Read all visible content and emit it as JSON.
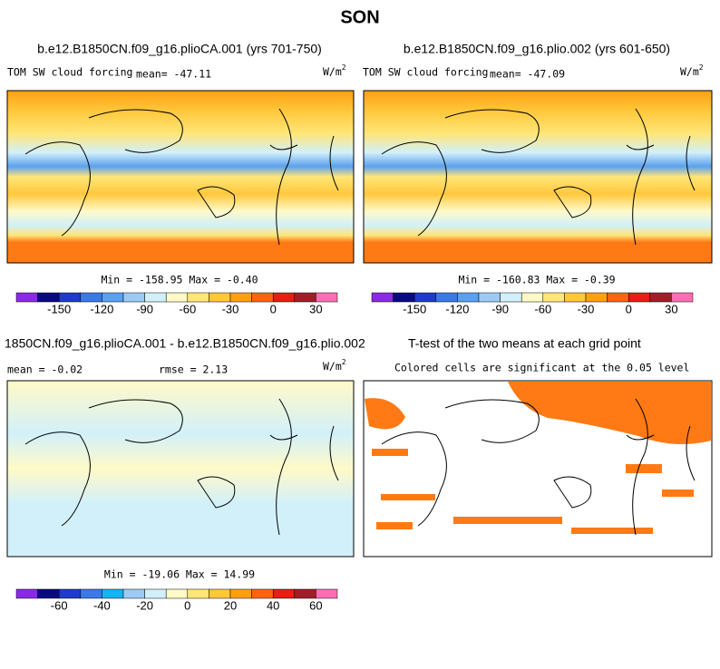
{
  "title": "SON",
  "panels": [
    {
      "title": "b.e12.B1850CN.f09_g16.plioCA.001 (yrs 701-750)",
      "variable": "TOM SW cloud forcing",
      "mean": "mean= -47.11",
      "units": "W/m",
      "units_power": "2",
      "stats": "Min = -158.95 Max =  -0.40"
    },
    {
      "title": "b.e12.B1850CN.f09_g16.plio.002 (yrs 601-650)",
      "variable": "TOM SW cloud forcing",
      "mean": "mean= -47.09",
      "units": "W/m",
      "units_power": "2",
      "stats": "Min = -160.83 Max =  -0.39"
    },
    {
      "title": "1850CN.f09_g16.plioCA.001 - b.e12.B1850CN.f09_g16.plio.002",
      "mean": "mean =  -0.02",
      "rmse": "rmse =  2.13",
      "units": "W/m",
      "units_power": "2",
      "stats": "Min = -19.06 Max =  14.99"
    },
    {
      "title": "T-test of the two means at each grid point",
      "note": "Colored cells are significant at the 0.05 level"
    }
  ],
  "colorbars": [
    {
      "colors": [
        "#8a2be2",
        "#0a0a80",
        "#1e3cc8",
        "#3c78e6",
        "#5aa0f0",
        "#9ccaf5",
        "#d2f0fa",
        "#fffac8",
        "#ffe678",
        "#ffc83c",
        "#ffa014",
        "#ff6414",
        "#e61e14",
        "#a01e28",
        "#ff6eb4"
      ],
      "labels": [
        "-150",
        "-120",
        "-90",
        "-60",
        "-30",
        "0",
        "30"
      ]
    },
    {
      "colors": [
        "#8a2be2",
        "#0a0a80",
        "#1e3cc8",
        "#3c78e6",
        "#5aa0f0",
        "#9ccaf5",
        "#d2f0fa",
        "#fffac8",
        "#ffe678",
        "#ffc83c",
        "#ffa014",
        "#ff6414",
        "#e61e14",
        "#a01e28",
        "#ff6eb4"
      ],
      "labels": [
        "-150",
        "-120",
        "-90",
        "-60",
        "-30",
        "0",
        "30"
      ]
    },
    {
      "colors": [
        "#8a2be2",
        "#0a0a80",
        "#1e3cc8",
        "#3c78e6",
        "#14b4f0",
        "#9ccaf5",
        "#d2f0fa",
        "#fffac8",
        "#ffe678",
        "#ffc83c",
        "#ffa014",
        "#ff6414",
        "#e61e14",
        "#a01e28",
        "#ff6eb4"
      ],
      "labels": [
        "-60",
        "-40",
        "-20",
        "0",
        "20",
        "40",
        "60"
      ]
    }
  ]
}
